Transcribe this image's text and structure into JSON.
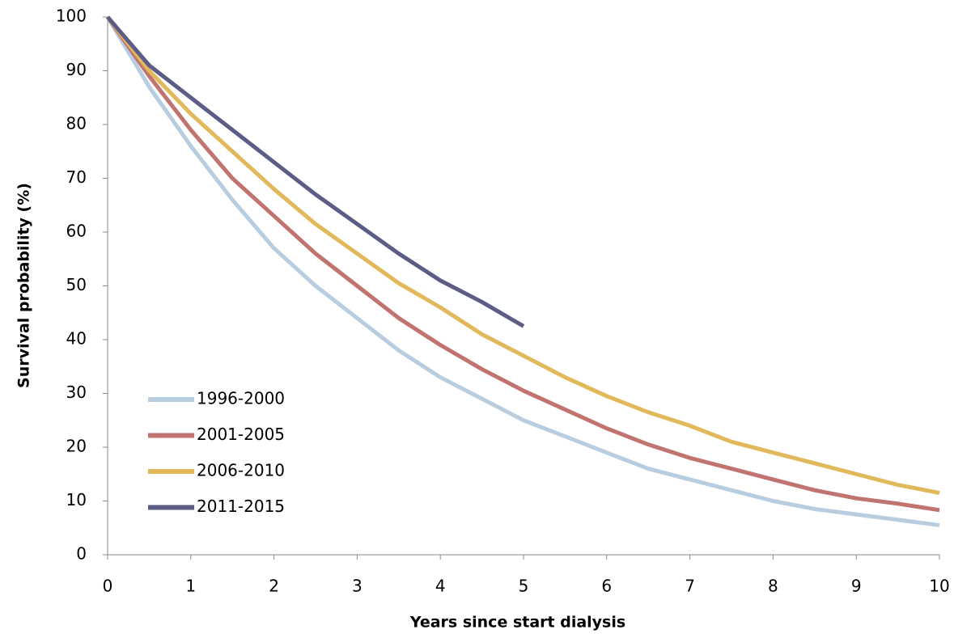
{
  "chart_data": {
    "type": "line",
    "x": [
      0,
      0.5,
      1,
      1.5,
      2,
      2.5,
      3,
      3.5,
      4,
      4.5,
      5,
      5.5,
      6,
      6.5,
      7,
      7.5,
      8,
      8.5,
      9,
      9.5,
      10
    ],
    "series": [
      {
        "name": "1996-2000",
        "color": "#b9cde0",
        "values": [
          100,
          87,
          76,
          66,
          57,
          50,
          44,
          38,
          33,
          29,
          25,
          22,
          19,
          16,
          14,
          12,
          10,
          8.5,
          7.5,
          6.5,
          5.5
        ]
      },
      {
        "name": "2001-2005",
        "color": "#c0736f",
        "values": [
          100,
          89,
          79,
          70,
          63,
          56,
          50,
          44,
          39,
          34.5,
          30.5,
          27,
          23.5,
          20.5,
          18,
          16,
          14,
          12,
          10.5,
          9.5,
          8.3
        ]
      },
      {
        "name": "2006-2010",
        "color": "#e1b95a",
        "values": [
          100,
          90,
          82,
          75,
          68,
          61.5,
          56,
          50.5,
          46,
          41,
          37,
          33,
          29.5,
          26.5,
          24,
          21,
          19,
          17,
          15,
          13,
          11.5
        ]
      },
      {
        "name": "2011-2015",
        "color": "#5b5d86",
        "values": [
          100,
          91,
          85,
          79,
          73,
          67,
          61.5,
          56,
          51,
          47,
          42.5,
          null,
          null,
          null,
          null,
          null,
          null,
          null,
          null,
          null,
          null
        ]
      }
    ],
    "x_label": "Years since start dialysis",
    "y_label": "Survival probability (%)",
    "xlim": [
      0,
      10
    ],
    "xticks": [
      0,
      1,
      2,
      3,
      4,
      5,
      6,
      7,
      8,
      9,
      10
    ],
    "ylim": [
      0,
      100
    ],
    "yticks": [
      0,
      10,
      20,
      30,
      40,
      50,
      60,
      70,
      80,
      90,
      100
    ],
    "grid": false,
    "legend": "lower left"
  }
}
